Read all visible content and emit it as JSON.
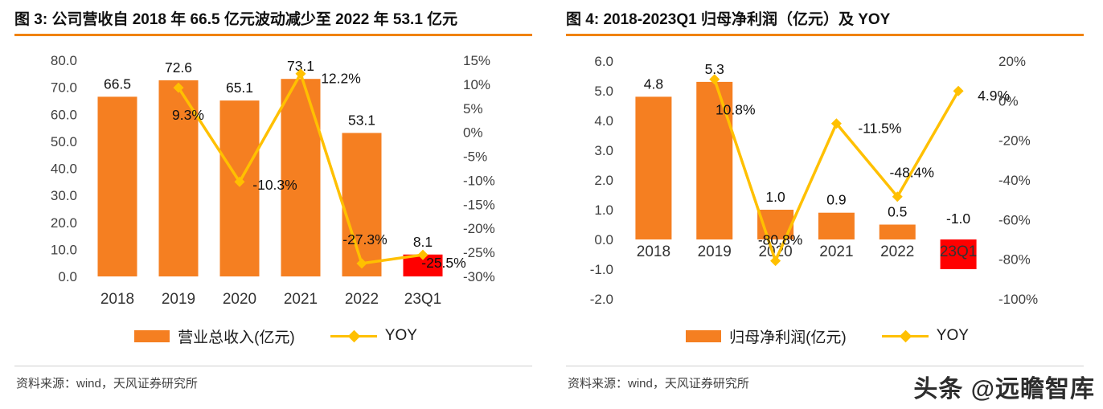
{
  "watermark": "头条 @远瞻智库",
  "panels": [
    {
      "title": "图 3: 公司营收自 2018 年 66.5 亿元波动减少至 2022 年 53.1 亿元",
      "source": "资料来源：wind，天风证券研究所",
      "legend": [
        {
          "label": "营业总收入(亿元)"
        },
        {
          "label": "YOY"
        }
      ]
    },
    {
      "title": "图 4: 2018-2023Q1 归母净利润（亿元）及 YOY",
      "source": "资料来源：wind，天风证券研究所",
      "legend": [
        {
          "label": "归母净利润(亿元)"
        },
        {
          "label": "YOY"
        }
      ]
    }
  ],
  "colors": {
    "bar_orange": "#F57F21",
    "bar_red": "#FF0000",
    "line_yellow": "#FFC000",
    "title_rule": "#F08300"
  },
  "chart_data": [
    {
      "type": "bar",
      "title": "公司营收自 2018 年 66.5 亿元波动减少至 2022 年 53.1 亿元",
      "categories": [
        "2018",
        "2019",
        "2020",
        "2021",
        "2022",
        "23Q1"
      ],
      "series": [
        {
          "name": "营业总收入(亿元)",
          "type": "bar",
          "axis": "left",
          "values": [
            66.5,
            72.6,
            65.1,
            73.1,
            53.1,
            8.1
          ],
          "labels": [
            "66.5",
            "72.6",
            "65.1",
            "73.1",
            "53.1",
            "8.1"
          ],
          "colors": [
            "#F57F21",
            "#F57F21",
            "#F57F21",
            "#F57F21",
            "#F57F21",
            "#FF0000"
          ]
        },
        {
          "name": "YOY",
          "type": "line",
          "axis": "right",
          "values": [
            null,
            9.3,
            -10.3,
            12.2,
            -27.3,
            -25.5
          ],
          "labels": [
            "",
            "9.3%",
            "-10.3%",
            "12.2%",
            "-27.3%",
            "-25.5%"
          ],
          "color": "#FFC000",
          "label_offsets": [
            null,
            [
              12,
              34
            ],
            [
              44,
              4
            ],
            [
              50,
              6
            ],
            [
              4,
              -30
            ],
            [
              26,
              10
            ]
          ]
        }
      ],
      "left_axis": {
        "min": 0,
        "max": 80,
        "ticks": [
          "80.0",
          "70.0",
          "60.0",
          "50.0",
          "40.0",
          "30.0",
          "20.0",
          "10.0",
          "0.0"
        ]
      },
      "right_axis": {
        "min": -30,
        "max": 15,
        "ticks": [
          "15%",
          "10%",
          "5%",
          "0%",
          "-5%",
          "-10%",
          "-15%",
          "-20%",
          "-25%",
          "-30%"
        ]
      },
      "grid": false,
      "legend_position": "bottom"
    },
    {
      "type": "bar",
      "title": "2018-2023Q1 归母净利润（亿元）及 YOY",
      "categories": [
        "2018",
        "2019",
        "2020",
        "2021",
        "2022",
        "23Q1"
      ],
      "series": [
        {
          "name": "归母净利润(亿元)",
          "type": "bar",
          "axis": "left",
          "values": [
            4.8,
            5.3,
            1.0,
            0.9,
            0.5,
            -1.0
          ],
          "labels": [
            "4.8",
            "5.3",
            "1.0",
            "0.9",
            "0.5",
            "-1.0"
          ],
          "colors": [
            "#F57F21",
            "#F57F21",
            "#F57F21",
            "#F57F21",
            "#F57F21",
            "#FF0000"
          ]
        },
        {
          "name": "YOY",
          "type": "line",
          "axis": "right",
          "values": [
            null,
            10.8,
            -80.8,
            -11.5,
            -48.4,
            4.9
          ],
          "labels": [
            "",
            "10.8%",
            "-80.8%",
            "-11.5%",
            "-48.4%",
            "4.9%"
          ],
          "color": "#FFC000",
          "label_offsets": [
            null,
            [
              26,
              38
            ],
            [
              6,
              -26
            ],
            [
              54,
              6
            ],
            [
              18,
              -30
            ],
            [
              44,
              6
            ]
          ]
        }
      ],
      "left_axis": {
        "min": -2,
        "max": 6,
        "ticks": [
          "6.0",
          "5.0",
          "4.0",
          "3.0",
          "2.0",
          "1.0",
          "0.0",
          "-1.0",
          "-2.0"
        ]
      },
      "right_axis": {
        "min": -100,
        "max": 20,
        "ticks": [
          "20%",
          "0%",
          "-20%",
          "-40%",
          "-60%",
          "-80%",
          "-100%"
        ]
      },
      "grid": false,
      "legend_position": "bottom"
    }
  ]
}
